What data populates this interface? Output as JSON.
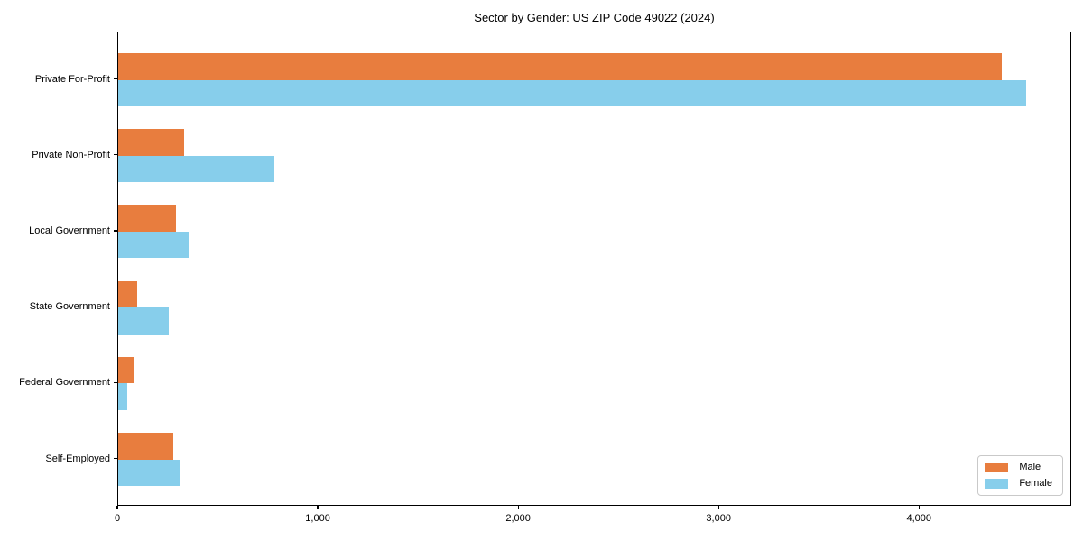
{
  "chart_data": {
    "type": "bar",
    "orientation": "horizontal",
    "title": "Sector by Gender: US ZIP Code 49022 (2024)",
    "xlabel": "",
    "ylabel": "",
    "categories": [
      "Private For-Profit",
      "Private Non-Profit",
      "Local Government",
      "State Government",
      "Federal Government",
      "Self-Employed"
    ],
    "series": [
      {
        "name": "Male",
        "color": "#e87d3e",
        "values": [
          4410,
          330,
          290,
          95,
          75,
          275
        ]
      },
      {
        "name": "Female",
        "color": "#87ceeb",
        "values": [
          4530,
          780,
          350,
          250,
          45,
          305
        ]
      }
    ],
    "xlim": [
      0,
      4760
    ],
    "xticks": [
      0,
      1000,
      2000,
      3000,
      4000
    ],
    "xtick_labels": [
      "0",
      "1,000",
      "2,000",
      "3,000",
      "4,000"
    ],
    "grid": false,
    "legend_position": "lower right"
  },
  "colors": {
    "male": "#e87d3e",
    "female": "#87ceeb",
    "axis": "#000000",
    "background": "#ffffff",
    "legend_border": "#c9c9c9"
  },
  "legend": {
    "items": [
      {
        "label": "Male"
      },
      {
        "label": "Female"
      }
    ]
  }
}
